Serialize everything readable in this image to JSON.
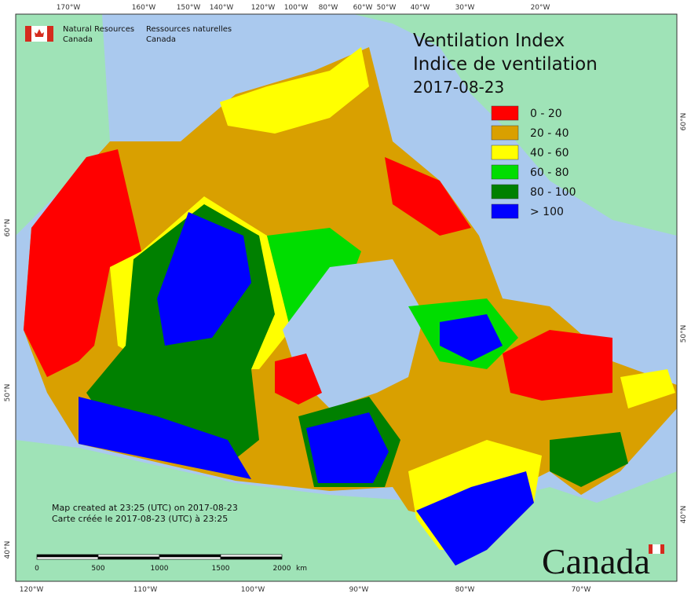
{
  "logo": {
    "en_line1": "Natural Resources",
    "en_line2": "Canada",
    "fr_line1": "Ressources naturelles",
    "fr_line2": "Canada"
  },
  "title": {
    "en": "Ventilation Index",
    "fr": "Indice de ventilation",
    "date": "2017-08-23"
  },
  "legend": [
    {
      "label": "0 - 20",
      "color": "#ff0000"
    },
    {
      "label": "20 - 40",
      "color": "#d9a000"
    },
    {
      "label": "40 - 60",
      "color": "#ffff00"
    },
    {
      "label": "60 - 80",
      "color": "#00dd00"
    },
    {
      "label": "80 - 100",
      "color": "#008000"
    },
    {
      "label": "> 100",
      "color": "#0000ff"
    }
  ],
  "graticule": {
    "top": [
      "170°W",
      "160°W",
      "150°W",
      "140°W",
      "120°W",
      "100°W",
      "80°W",
      "60°W",
      "50°W",
      "40°W",
      "30°W",
      "20°W"
    ],
    "bottom": [
      "120°W",
      "110°W",
      "100°W",
      "90°W",
      "80°W",
      "70°W"
    ],
    "left": [
      "60°N",
      "50°N",
      "40°N"
    ],
    "right": [
      "60°N",
      "50°N",
      "40°N"
    ]
  },
  "footer": {
    "created_en": "Map created at 23:25 (UTC) on 2017-08-23",
    "created_fr": "Carte créée le 2017-08-23 (UTC) à 23:25"
  },
  "scale_bar": {
    "labels": [
      "0",
      "500",
      "1000",
      "1500",
      "2000"
    ],
    "unit": "km"
  },
  "wordmark": "Canada"
}
